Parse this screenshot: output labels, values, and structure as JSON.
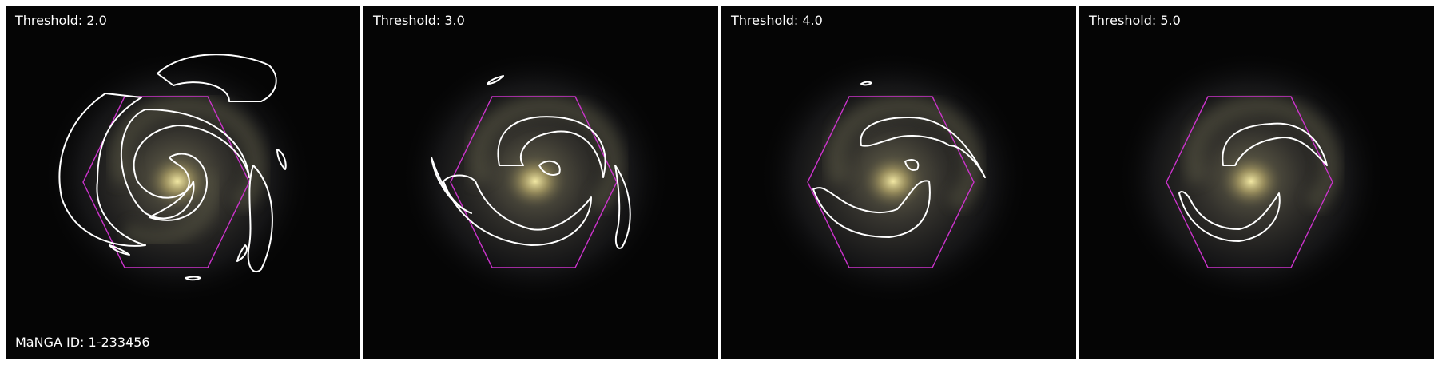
{
  "panels": [
    {
      "threshold_label": "Threshold: 2.0"
    },
    {
      "threshold_label": "Threshold: 3.0"
    },
    {
      "threshold_label": "Threshold: 4.0"
    },
    {
      "threshold_label": "Threshold: 5.0"
    }
  ],
  "manga_id_label": "MaNGA ID: 1-233456",
  "colors": {
    "contour": "#ffffff",
    "ifu_hexagon": "#cc33cc",
    "background": "#000000"
  }
}
